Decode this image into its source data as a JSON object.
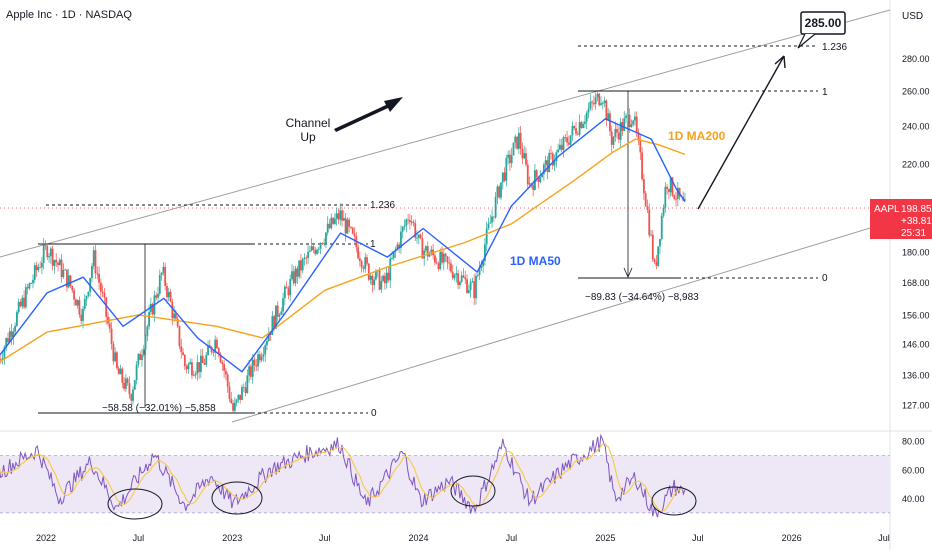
{
  "header": {
    "title": "Apple Inc · 1D · NASDAQ"
  },
  "currency": "USD",
  "last_price": {
    "ticker": "AAPL",
    "value": "198.85",
    "change": "+38.81%",
    "countdown": "25:31"
  },
  "target": {
    "label": "285.00"
  },
  "annotations": {
    "channel_label_1": "Channel",
    "channel_label_2": "Up",
    "ma50_label": "1D MA50",
    "ma200_label": "1D MA200",
    "fib1_top": "1.236",
    "fib1_mid": "1",
    "fib1_low": "0",
    "fib1_measure": "−58.58 (−32.01%) −5,858",
    "fib2_top": "1.236",
    "fib2_mid": "1",
    "fib2_low": "0",
    "fib2_measure": "−89.83 (−34.64%) −8,983"
  },
  "colors": {
    "price_up": "#26a69a",
    "price_down": "#ef5350",
    "ma50": "#2962ff",
    "ma200": "#f7a21b",
    "rsi": "#7e57c2",
    "rsi_ma": "#f7c948",
    "rsi_band": "#ede7f6",
    "channel": "#9e9e9e",
    "price_tag": "#f23645"
  },
  "chart_data": {
    "type": "line",
    "title": "Apple Inc · 1D · NASDAQ",
    "x_ticks": [
      "2022",
      "Jul",
      "2023",
      "Jul",
      "2024",
      "Jul",
      "2025",
      "Jul",
      "2026",
      "Jul"
    ],
    "y_ticks": [
      "280.00",
      "260.00",
      "240.00",
      "220.00",
      "200.00",
      "180.00",
      "168.00",
      "156.00",
      "146.00",
      "136.00",
      "127.00"
    ],
    "y_scale": "log",
    "rsi_ticks": [
      "80.00",
      "60.00",
      "40.00"
    ],
    "grid": false,
    "series": [
      {
        "name": "AAPL",
        "x": [
          "2021-10-01",
          "2021-11-15",
          "2022-01-03",
          "2022-02-15",
          "2022-03-14",
          "2022-04-04",
          "2022-05-20",
          "2022-06-16",
          "2022-08-17",
          "2022-09-30",
          "2022-11-03",
          "2022-12-01",
          "2023-01-03",
          "2023-03-01",
          "2023-05-01",
          "2023-07-31",
          "2023-09-25",
          "2023-10-26",
          "2023-12-14",
          "2024-01-04",
          "2024-03-01",
          "2024-04-19",
          "2024-06-14",
          "2024-07-15",
          "2024-08-05",
          "2024-10-01",
          "2024-12-26",
          "2025-01-13",
          "2025-02-24",
          "2025-04-08",
          "2025-05-01",
          "2025-06-06"
        ],
        "values": [
          141,
          160,
          182,
          168,
          156,
          178,
          137,
          130,
          172,
          139,
          139,
          148,
          125,
          145,
          170,
          196,
          172,
          167,
          197,
          182,
          174,
          165,
          214,
          234,
          210,
          226,
          259,
          233,
          247,
          172,
          212,
          198.85
        ]
      },
      {
        "name": "1D MA50",
        "x": [
          "2021-10-01",
          "2022-01-03",
          "2022-03-15",
          "2022-06-01",
          "2022-08-20",
          "2022-10-25",
          "2023-01-20",
          "2023-04-20",
          "2023-08-01",
          "2023-11-01",
          "2024-01-10",
          "2024-04-25",
          "2024-07-01",
          "2024-10-01",
          "2025-01-01",
          "2025-04-01",
          "2025-05-20",
          "2025-06-06"
        ],
        "values": [
          142,
          164,
          170,
          152,
          162,
          148,
          137,
          158,
          188,
          178,
          190,
          172,
          200,
          224,
          244,
          233,
          208,
          202
        ]
      },
      {
        "name": "1D MA200",
        "x": [
          "2021-10-01",
          "2022-01-03",
          "2022-07-01",
          "2022-12-01",
          "2023-03-01",
          "2023-07-01",
          "2023-11-01",
          "2024-04-01",
          "2024-07-01",
          "2024-11-01",
          "2025-01-15",
          "2025-03-01",
          "2025-04-15",
          "2025-06-06"
        ],
        "values": [
          140,
          150,
          156,
          152,
          148,
          165,
          174,
          184,
          192,
          212,
          226,
          233,
          230,
          225
        ]
      }
    ],
    "rsi": {
      "name": "RSI",
      "ylim": [
        25,
        85
      ],
      "x": [
        "2021-10-01",
        "2021-12-15",
        "2022-01-27",
        "2022-03-30",
        "2022-05-20",
        "2022-08-01",
        "2022-09-30",
        "2022-11-20",
        "2023-01-03",
        "2023-03-15",
        "2023-06-01",
        "2023-07-31",
        "2023-09-20",
        "2023-12-01",
        "2024-01-05",
        "2024-03-01",
        "2024-04-19",
        "2024-06-15",
        "2024-08-05",
        "2024-10-15",
        "2024-12-26",
        "2025-01-20",
        "2025-03-01",
        "2025-04-08",
        "2025-05-15",
        "2025-06-06"
      ],
      "values": [
        58,
        74,
        40,
        66,
        33,
        71,
        35,
        56,
        36,
        60,
        72,
        78,
        35,
        72,
        38,
        52,
        32,
        78,
        38,
        62,
        80,
        40,
        55,
        28,
        48,
        44
      ]
    },
    "rsi_bands": [
      70,
      30
    ]
  }
}
